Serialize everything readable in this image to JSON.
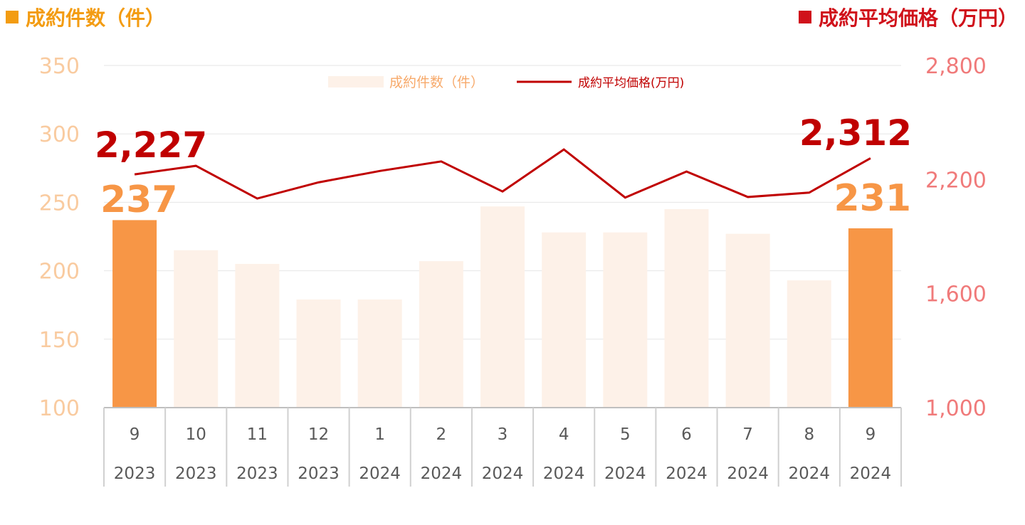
{
  "header": {
    "left_title": "成約件数（件）",
    "right_title": "成約平均価格（万円）",
    "left_color": "#F39C12",
    "right_color": "#D0121B"
  },
  "chart_data": {
    "type": "bar+line",
    "categories": [
      {
        "month": "9",
        "year": "2023"
      },
      {
        "month": "10",
        "year": "2023"
      },
      {
        "month": "11",
        "year": "2023"
      },
      {
        "month": "12",
        "year": "2023"
      },
      {
        "month": "1",
        "year": "2024"
      },
      {
        "month": "2",
        "year": "2024"
      },
      {
        "month": "3",
        "year": "2024"
      },
      {
        "month": "4",
        "year": "2024"
      },
      {
        "month": "5",
        "year": "2024"
      },
      {
        "month": "6",
        "year": "2024"
      },
      {
        "month": "7",
        "year": "2024"
      },
      {
        "month": "8",
        "year": "2024"
      },
      {
        "month": "9",
        "year": "2024"
      }
    ],
    "series": [
      {
        "name": "成約件数（件）",
        "type": "bar",
        "axis": "left",
        "values": [
          237,
          215,
          205,
          179,
          179,
          207,
          247,
          228,
          228,
          245,
          227,
          193,
          231
        ],
        "color": "#FDF1E8",
        "highlight_color": "#F79646",
        "highlight_indices": [
          0,
          12
        ]
      },
      {
        "name": "成約平均価格(万円)",
        "type": "line",
        "axis": "right",
        "values": [
          2227,
          2272,
          2100,
          2185,
          2245,
          2295,
          2137,
          2358,
          2105,
          2242,
          2108,
          2131,
          2312
        ],
        "color": "#C00000"
      }
    ],
    "left_axis": {
      "min": 100,
      "max": 350,
      "step": 50,
      "tick_labels": [
        "100",
        "150",
        "200",
        "250",
        "300",
        "350"
      ],
      "color": "#F9CBA0"
    },
    "right_axis": {
      "min": 1000,
      "max": 2800,
      "tick_values": [
        1000,
        1600,
        2200,
        2800
      ],
      "tick_labels": [
        "1,000",
        "1,600",
        "2,200",
        "2,800"
      ],
      "color": "#F07A7A"
    },
    "annotations": [
      {
        "text": "2,227",
        "series": "line",
        "index": 0,
        "color": "#C00000"
      },
      {
        "text": "2,312",
        "series": "line",
        "index": 12,
        "color": "#C00000"
      },
      {
        "text": "237",
        "series": "bar",
        "index": 0,
        "color": "#F79646"
      },
      {
        "text": "231",
        "series": "bar",
        "index": 12,
        "color": "#F79646"
      }
    ],
    "legend": {
      "placement": "top-center",
      "bar_label": "成約件数（件）",
      "line_label": "成約平均価格(万円)",
      "bar_label_color": "#F7A96A",
      "line_label_color": "#C00000"
    },
    "grid": true,
    "grid_color": "#E6E6E6"
  }
}
